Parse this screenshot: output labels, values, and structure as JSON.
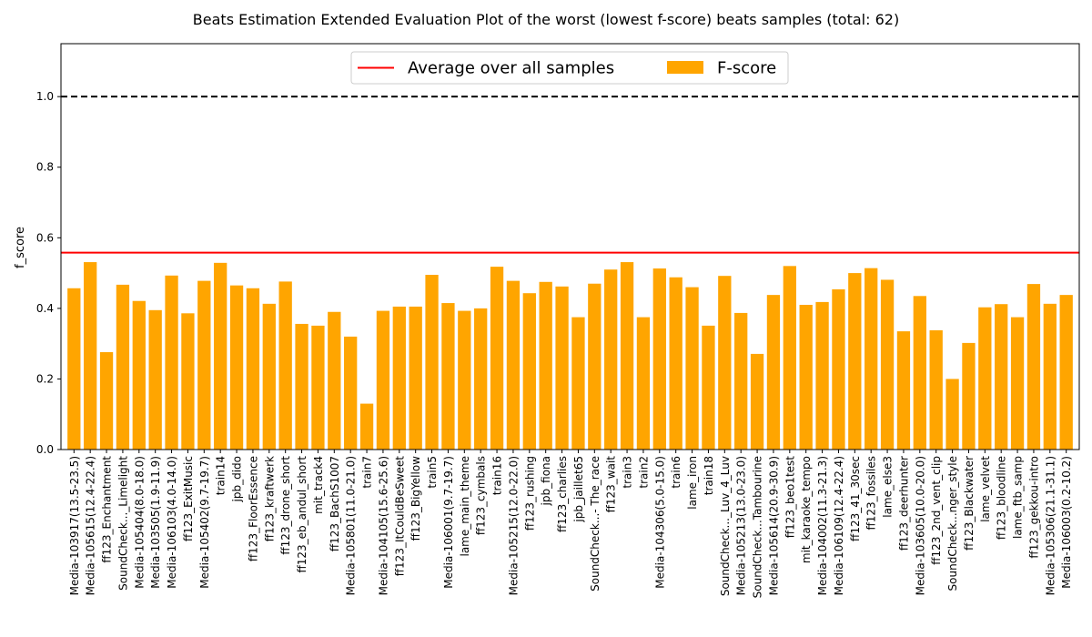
{
  "chart_data": {
    "type": "bar",
    "title": "Beats Estimation Extended Evaluation Plot of the worst (lowest f-score) beats samples (total: 62)",
    "xlabel": "",
    "ylabel": "f_score",
    "ylim": [
      0,
      1.15
    ],
    "yticks": [
      "0.0",
      "0.2",
      "0.4",
      "0.6",
      "0.8",
      "1.0"
    ],
    "grid": false,
    "legend_placement": "top-center",
    "average": 0.558,
    "reference_line": 1.0,
    "colors": {
      "bars": "#ffa500",
      "average": "#ff0000",
      "reference": "#000000"
    },
    "series": [
      {
        "name": "F-score",
        "values": [
          0.457,
          0.531,
          0.276,
          0.467,
          0.421,
          0.395,
          0.493,
          0.386,
          0.478,
          0.529,
          0.465,
          0.457,
          0.413,
          0.476,
          0.356,
          0.351,
          0.39,
          0.32,
          0.13,
          0.393,
          0.405,
          0.405,
          0.495,
          0.415,
          0.393,
          0.4,
          0.518,
          0.478,
          0.443,
          0.475,
          0.462,
          0.375,
          0.47,
          0.51,
          0.531,
          0.375,
          0.513,
          0.488,
          0.46,
          0.351,
          0.492,
          0.387,
          0.271,
          0.438,
          0.52,
          0.41,
          0.418,
          0.454,
          0.5,
          0.514,
          0.481,
          0.335,
          0.435,
          0.338,
          0.2,
          0.302,
          0.403,
          0.412,
          0.375,
          0.469,
          0.413,
          0.438
        ]
      }
    ],
    "categories": [
      "Media-103917(13.5-23.5)",
      "Media-105615(12.4-22.4)",
      "ff123_Enchantment",
      "SoundCheck..._Limelight",
      "Media-105404(8.0-18.0)",
      "Media-103505(1.9-11.9)",
      "Media-106103(4.0-14.0)",
      "ff123_ExitMusic",
      "Media-105402(9.7-19.7)",
      "train14",
      "jpb_dido",
      "ff123_FloorEssence",
      "ff123_kraftwerk",
      "ff123_drone_short",
      "ff123_eb_andul_short",
      "mit_track4",
      "ff123_BachS1007",
      "Media-105801(11.0-21.0)",
      "train7",
      "Media-104105(15.6-25.6)",
      "ff123_ItCouldBeSweet",
      "ff123_BigYellow",
      "train5",
      "Media-106001(9.7-19.7)",
      "lame_main_theme",
      "ff123_cymbals",
      "train16",
      "Media-105215(12.0-22.0)",
      "ff123_rushing",
      "jpb_fiona",
      "ff123_charlies",
      "jpb_jaillet65",
      "SoundCheck...- The_race",
      "ff123_wait",
      "train3",
      "train2",
      "Media-104306(5.0-15.0)",
      "train6",
      "lame_iron",
      "train18",
      "SoundCheck..._Luv_4_Luv",
      "Media-105213(13.0-23.0)",
      "SoundCheck...Tambourine",
      "Media-105614(20.9-30.9)",
      "ff123_beo1test",
      "mit_karaoke_tempo",
      "Media-104002(11.3-21.3)",
      "Media-106109(12.4-22.4)",
      "ff123_41_30sec",
      "ff123_fossiles",
      "lame_else3",
      "ff123_deerhunter",
      "Media-103605(10.0-20.0)",
      "ff123_2nd_vent_clip",
      "SoundCheck...nger_style",
      "ff123_Blackwater",
      "lame_velvet",
      "ff123_bloodline",
      "lame_ftb_samp",
      "ff123_gekkou-intro",
      "Media-105306(21.1-31.1)",
      "Media-106003(0.2-10.2)"
    ],
    "legend": [
      {
        "label": "Average over all samples",
        "kind": "line",
        "color": "#ff0000"
      },
      {
        "label": "F-score",
        "kind": "patch",
        "color": "#ffa500"
      }
    ]
  }
}
